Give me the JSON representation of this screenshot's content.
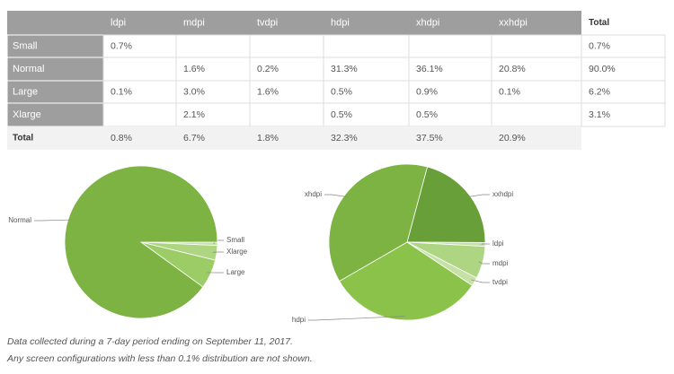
{
  "table": {
    "columns": [
      "ldpi",
      "mdpi",
      "tvdpi",
      "hdpi",
      "xhdpi",
      "xxhdpi",
      "Total"
    ],
    "rows": [
      {
        "label": "Small",
        "cells": [
          "0.7%",
          null,
          null,
          null,
          null,
          null,
          "0.7%"
        ]
      },
      {
        "label": "Normal",
        "cells": [
          null,
          "1.6%",
          "0.2%",
          "31.3%",
          "36.1%",
          "20.8%",
          "90.0%"
        ]
      },
      {
        "label": "Large",
        "cells": [
          "0.1%",
          "3.0%",
          "1.6%",
          "0.5%",
          "0.9%",
          "0.1%",
          "6.2%"
        ]
      },
      {
        "label": "Xlarge",
        "cells": [
          null,
          "2.1%",
          null,
          "0.5%",
          "0.5%",
          null,
          "3.1%"
        ]
      }
    ],
    "total": {
      "label": "Total",
      "cells": [
        "0.8%",
        "6.7%",
        "1.8%",
        "32.3%",
        "37.5%",
        "20.9%"
      ]
    }
  },
  "charts": [
    {
      "type": "pie",
      "slices": [
        {
          "label": "Small",
          "value": 0.7,
          "color": "#c5e1a5"
        },
        {
          "label": "Xlarge",
          "value": 3.1,
          "color": "#aed581"
        },
        {
          "label": "Large",
          "value": 6.2,
          "color": "#9ccc65"
        },
        {
          "label": "Normal",
          "value": 90.0,
          "color": "#7cb342"
        }
      ]
    },
    {
      "type": "pie",
      "slices": [
        {
          "label": "xxhdpi",
          "value": 20.9,
          "color": "#689f38"
        },
        {
          "label": "ldpi",
          "value": 0.8,
          "color": "#c5e1a5"
        },
        {
          "label": "mdpi",
          "value": 6.7,
          "color": "#aed581"
        },
        {
          "label": "tvdpi",
          "value": 1.8,
          "color": "#c5e1a5"
        },
        {
          "label": "hdpi",
          "value": 32.3,
          "color": "#8bc34a"
        },
        {
          "label": "xhdpi",
          "value": 37.5,
          "color": "#7cb342"
        }
      ]
    }
  ],
  "notes": [
    "Data collected during a 7-day period ending on September 11, 2017.",
    "Any screen configurations with less than 0.1% distribution are not shown."
  ]
}
